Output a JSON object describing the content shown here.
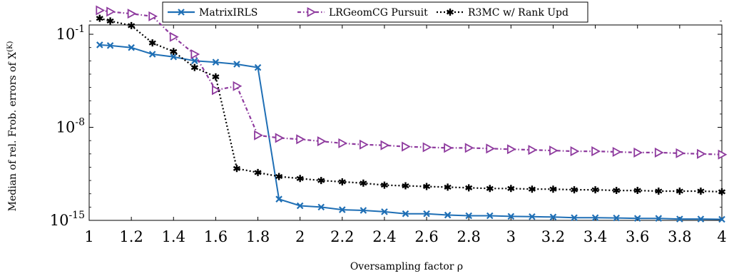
{
  "chart_data": {
    "type": "line",
    "title": "",
    "xlabel": "Oversampling factor ρ",
    "ylabel": "Median of rel. Frob. errors of X",
    "ylabel_superscript": "(K)",
    "xlim": [
      1,
      4
    ],
    "ylim_log10": [
      -15,
      -0.3
    ],
    "y_scale": "log",
    "x_ticks": [
      1,
      1.2,
      1.4,
      1.6,
      1.8,
      2,
      2.2,
      2.4,
      2.6,
      2.8,
      3,
      3.2,
      3.4,
      3.6,
      3.8,
      4
    ],
    "y_ticks": [
      {
        "exp": -1,
        "label": "10^-1"
      },
      {
        "exp": -8,
        "label": "10^-8"
      },
      {
        "exp": -15,
        "label": "10^-15"
      }
    ],
    "legend": {
      "placement": "top-center",
      "entries": [
        "MatrixIRLS",
        "LRGeomCG Pursuit",
        "R3MC w/ Rank Upd"
      ]
    },
    "series": [
      {
        "name": "MatrixIRLS",
        "color": "#1f6fb5",
        "marker": "x",
        "line": "solid",
        "x": [
          1.05,
          1.1,
          1.2,
          1.3,
          1.4,
          1.5,
          1.6,
          1.7,
          1.8,
          1.9,
          2.0,
          2.1,
          2.2,
          2.3,
          2.4,
          2.5,
          2.6,
          2.7,
          2.8,
          2.9,
          3.0,
          3.1,
          3.2,
          3.3,
          3.4,
          3.5,
          3.6,
          3.7,
          3.8,
          3.9,
          4.0
        ],
        "log10_y": [
          -1.8,
          -1.85,
          -2.0,
          -2.5,
          -2.7,
          -3.0,
          -3.1,
          -3.25,
          -3.5,
          -13.4,
          -13.9,
          -14.0,
          -14.2,
          -14.25,
          -14.35,
          -14.5,
          -14.5,
          -14.6,
          -14.65,
          -14.65,
          -14.7,
          -14.72,
          -14.75,
          -14.8,
          -14.8,
          -14.82,
          -14.85,
          -14.85,
          -14.9,
          -14.9,
          -14.92
        ]
      },
      {
        "name": "LRGeomCG Pursuit",
        "color": "#8e3a9e",
        "marker": "triangle-right",
        "line": "dashdotted",
        "x": [
          1.05,
          1.1,
          1.2,
          1.3,
          1.4,
          1.5,
          1.6,
          1.7,
          1.8,
          1.9,
          2.0,
          2.1,
          2.2,
          2.3,
          2.4,
          2.5,
          2.6,
          2.7,
          2.8,
          2.9,
          3.0,
          3.1,
          3.2,
          3.3,
          3.4,
          3.5,
          3.6,
          3.7,
          3.8,
          3.9,
          4.0
        ],
        "log10_y": [
          0.8,
          0.7,
          0.55,
          0.35,
          -1.2,
          -2.5,
          -5.2,
          -4.9,
          -8.6,
          -8.8,
          -8.9,
          -9.05,
          -9.2,
          -9.3,
          -9.35,
          -9.45,
          -9.5,
          -9.55,
          -9.55,
          -9.6,
          -9.65,
          -9.7,
          -9.75,
          -9.8,
          -9.8,
          -9.85,
          -9.9,
          -9.9,
          -9.95,
          -10.0,
          -10.05
        ]
      },
      {
        "name": "R3MC w/ Rank Upd",
        "color": "#000000",
        "marker": "asterisk",
        "line": "dotted",
        "x": [
          1.05,
          1.1,
          1.2,
          1.3,
          1.4,
          1.5,
          1.6,
          1.7,
          1.8,
          1.9,
          2.0,
          2.1,
          2.2,
          2.3,
          2.4,
          2.5,
          2.6,
          2.7,
          2.8,
          2.9,
          3.0,
          3.1,
          3.2,
          3.3,
          3.4,
          3.5,
          3.6,
          3.7,
          3.8,
          3.9,
          4.0
        ],
        "log10_y": [
          0.2,
          0.0,
          -0.35,
          -1.65,
          -2.3,
          -3.5,
          -4.2,
          -11.1,
          -11.4,
          -11.7,
          -11.85,
          -12.0,
          -12.1,
          -12.2,
          -12.35,
          -12.4,
          -12.45,
          -12.5,
          -12.55,
          -12.6,
          -12.6,
          -12.65,
          -12.65,
          -12.7,
          -12.7,
          -12.75,
          -12.75,
          -12.8,
          -12.8,
          -12.8,
          -12.85
        ]
      }
    ]
  }
}
